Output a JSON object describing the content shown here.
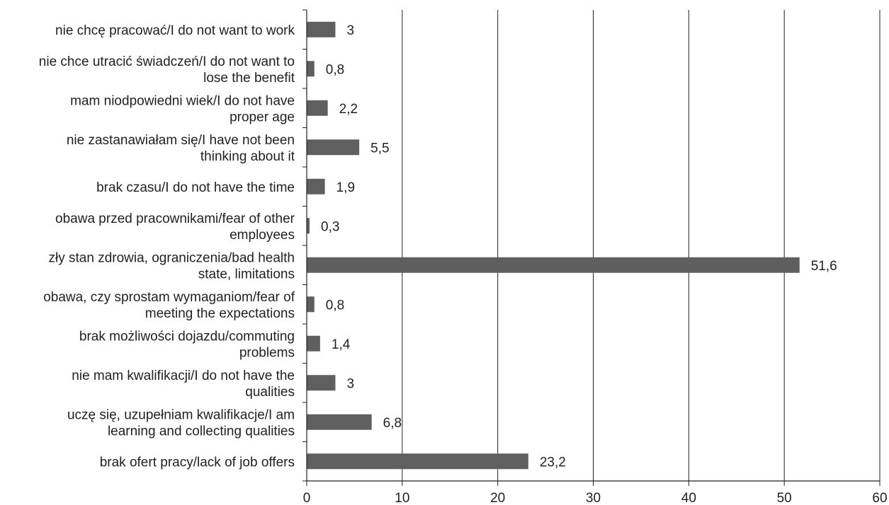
{
  "chart_data": {
    "type": "bar",
    "orientation": "horizontal",
    "title": "",
    "xlabel": "",
    "ylabel": "",
    "xlim": [
      0,
      60
    ],
    "x_ticks": [
      0,
      10,
      20,
      30,
      40,
      50,
      60
    ],
    "grid": "vertical",
    "legend": "none",
    "bar_color": "#5f5f5f",
    "categories": [
      [
        "nie chcę pracować/I do not want to work"
      ],
      [
        "nie chce utracić świadczeń/I do not want to",
        "lose the benefit"
      ],
      [
        "mam niodpowiedni wiek/I do not have",
        "proper age"
      ],
      [
        "nie zastanawiałam się/I have not been",
        "thinking about it"
      ],
      [
        "brak czasu/I do not have the time"
      ],
      [
        "obawa przed pracownikami/fear of other",
        "employees"
      ],
      [
        "zły stan zdrowia, ograniczenia/bad health",
        "state, limitations"
      ],
      [
        "obawa, czy sprostam wymaganiom/fear of",
        "meeting the expectations"
      ],
      [
        "brak możliwości dojazdu/commuting",
        "problems"
      ],
      [
        "nie mam kwalifikacji/I do not have the",
        "qualities"
      ],
      [
        "uczę się, uzupełniam kwalifikacje/I am",
        "learning and collecting qualities"
      ],
      [
        "brak ofert pracy/lack of job offers"
      ]
    ],
    "values": [
      3,
      0.8,
      2.2,
      5.5,
      1.9,
      0.3,
      51.6,
      0.8,
      1.4,
      3,
      6.8,
      23.2
    ],
    "value_labels": [
      "3",
      "0,8",
      "2,2",
      "5,5",
      "1,9",
      "0,3",
      "51,6",
      "0,8",
      "1,4",
      "3",
      "6,8",
      "23,2"
    ]
  }
}
